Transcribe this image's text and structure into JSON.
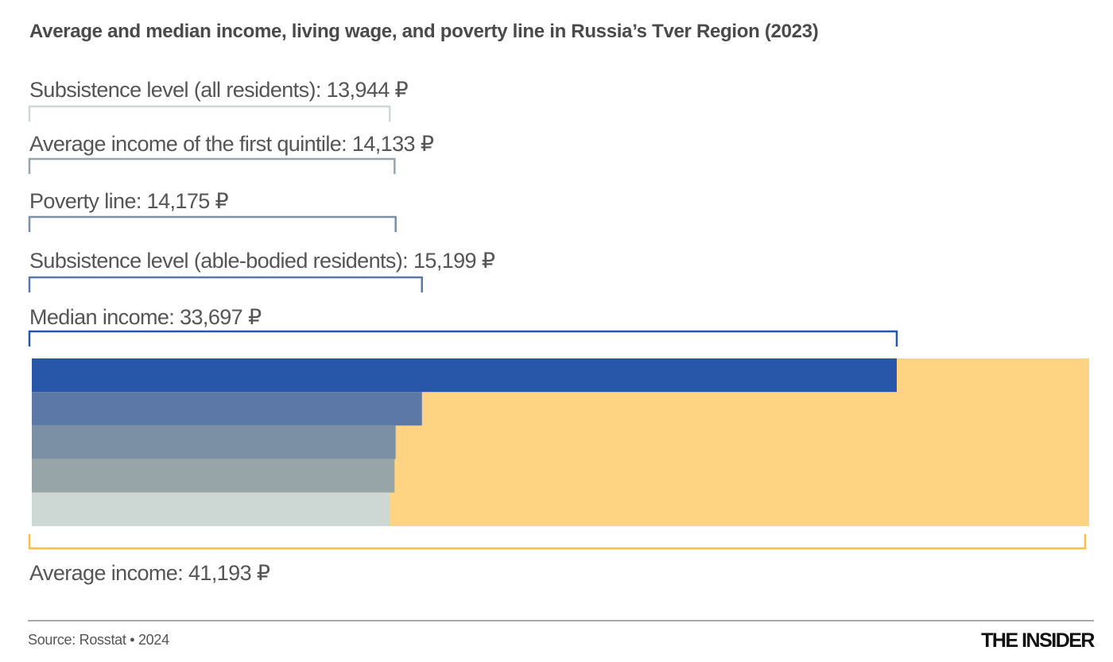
{
  "title": "Average and median income, living wage, and poverty line in Russia’s Tver Region (2023)",
  "footer": {
    "source": "Source: Rosstat • 2024",
    "logo": "THE INSIDER"
  },
  "chart_data": {
    "type": "bar",
    "title": "Average and median income, living wage, and poverty line in Russia’s Tver Region (2023)",
    "orientation": "horizontal-overlapping",
    "currency": "₽",
    "xlim": [
      0,
      41193
    ],
    "grid": false,
    "items": [
      {
        "label": "Subsistence level (all residents): 13,944 ₽",
        "value": 13944,
        "color": "#cdd7d3"
      },
      {
        "label": "Average income of the first quintile: 14,133 ₽",
        "value": 14133,
        "color": "#98a5a8"
      },
      {
        "label": "Poverty line: 14,175 ₽",
        "value": 14175,
        "color": "#7b8fa5"
      },
      {
        "label": "Subsistence level (able-bodied residents): 15,199 ₽",
        "value": 15199,
        "color": "#5b78a6"
      },
      {
        "label": "Median income: 33,697 ₽",
        "value": 33697,
        "color": "#2856a8"
      }
    ],
    "background_item": {
      "label": "Average income: 41,193 ₽",
      "value": 41193,
      "color": "#fed381",
      "bracket_color": "#fbbf45"
    }
  }
}
